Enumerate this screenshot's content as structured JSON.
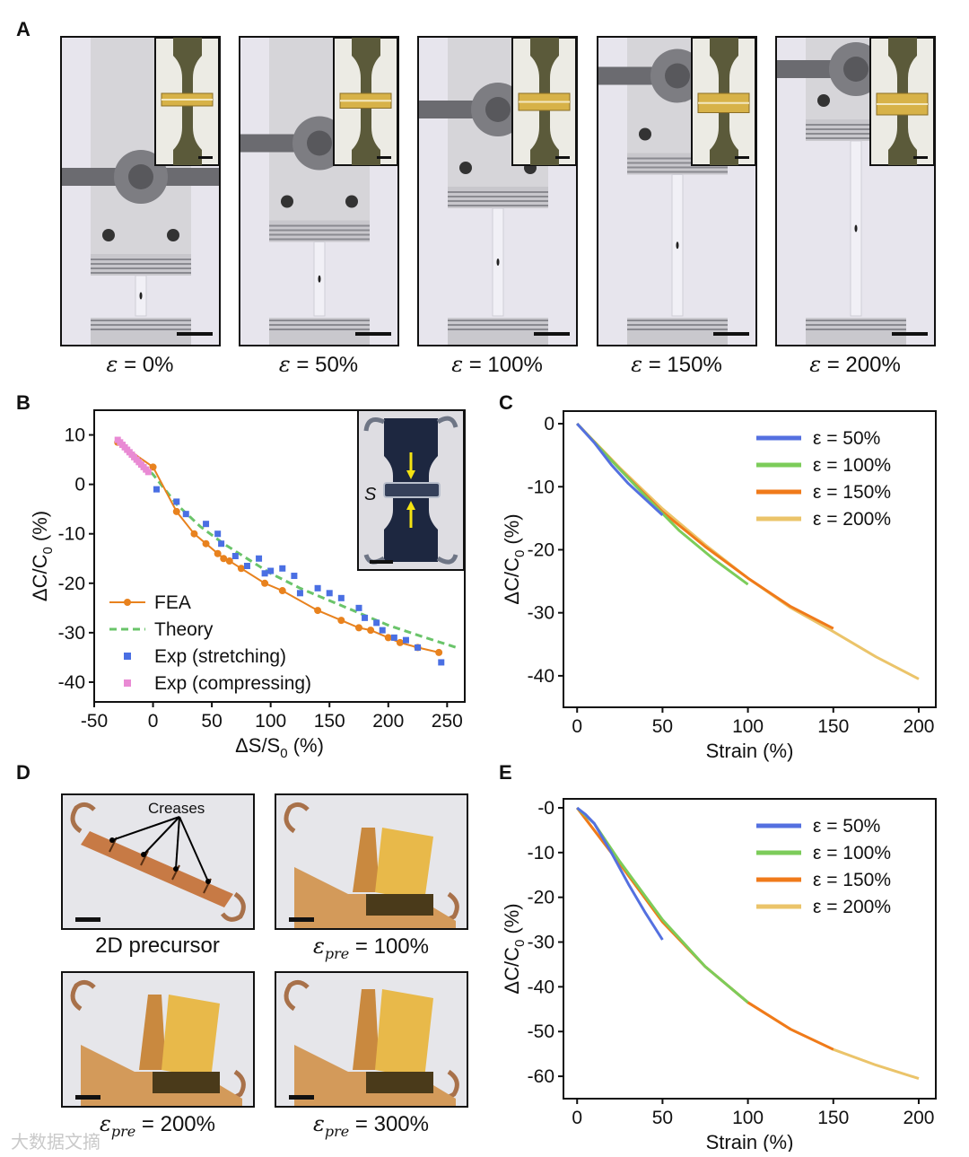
{
  "panel_labels": {
    "a": "A",
    "b": "B",
    "c": "C",
    "d": "D",
    "e": "E"
  },
  "panel_a": {
    "strain_symbol": "ε",
    "captions": [
      " = 0%",
      " = 50%",
      " = 100%",
      " = 150%",
      " = 200%"
    ],
    "photo_stretch_values": [
      0,
      50,
      100,
      150,
      200
    ]
  },
  "panel_b_inset_label": "S",
  "panel_d": {
    "creases_label": "Creases",
    "captions": [
      "2D precursor",
      " = 100%",
      " = 200%",
      " = 300%"
    ],
    "eps_pre_symbol": "ε",
    "eps_pre_subscript": "pre"
  },
  "watermark": "大数据文摘",
  "colors": {
    "fea": "#e8821e",
    "theory": "#6ac46a",
    "exp_stretch": "#4a6fe3",
    "exp_compress": "#e98ad4",
    "s50": "#5470e0",
    "s100": "#7ccc5a",
    "s150": "#f07a1a",
    "s200": "#ebc46a"
  },
  "chart_data": [
    {
      "panel": "B",
      "type": "scatter",
      "xlabel": "ΔS/S0 (%)",
      "ylabel": "ΔC/C0 (%)",
      "xlim": [
        -50,
        265
      ],
      "ylim": [
        -44,
        15
      ],
      "xticks": [
        -50,
        0,
        50,
        100,
        150,
        200,
        250
      ],
      "yticks": [
        10,
        0,
        -10,
        -20,
        -30,
        -40
      ],
      "legend": [
        "FEA",
        "Theory",
        "Exp (stretching)",
        "Exp (compressing)"
      ],
      "series": [
        {
          "name": "FEA",
          "style": "line+marker",
          "x": [
            -30,
            0,
            20,
            35,
            45,
            55,
            60,
            65,
            75,
            95,
            110,
            140,
            160,
            175,
            185,
            200,
            210,
            225,
            243
          ],
          "y": [
            8.5,
            3.5,
            -5.5,
            -10,
            -12,
            -14,
            -15,
            -15.5,
            -17,
            -20,
            -21.5,
            -25.5,
            -27.5,
            -29,
            -29.5,
            -31,
            -32,
            -33,
            -34
          ]
        },
        {
          "name": "Theory",
          "style": "dashed",
          "x": [
            -30,
            -15,
            0,
            20,
            40,
            60,
            80,
            100,
            125,
            150,
            175,
            200,
            225,
            258
          ],
          "y": [
            9,
            5.5,
            2,
            -4,
            -8.5,
            -12,
            -15,
            -18,
            -21,
            -23.5,
            -26,
            -28.5,
            -30.5,
            -33
          ]
        },
        {
          "name": "Exp (stretching)",
          "style": "marker",
          "x": [
            3,
            20,
            28,
            45,
            55,
            58,
            70,
            80,
            90,
            95,
            100,
            110,
            120,
            125,
            140,
            150,
            160,
            175,
            180,
            190,
            195,
            205,
            215,
            225,
            245
          ],
          "y": [
            -1,
            -3.5,
            -6,
            -8,
            -10,
            -12,
            -14.5,
            -16.5,
            -15,
            -18,
            -17.5,
            -17,
            -18.5,
            -22,
            -21,
            -22,
            -23,
            -25,
            -27,
            -28,
            -29.5,
            -31,
            -31.5,
            -33,
            -36
          ]
        },
        {
          "name": "Exp (compressing)",
          "style": "marker",
          "x": [
            -30,
            -28,
            -26,
            -24,
            -22,
            -20,
            -18,
            -16,
            -14,
            -12,
            -10,
            -8,
            -6,
            -4
          ],
          "y": [
            9,
            8.5,
            8,
            7.5,
            7,
            6.5,
            6,
            5.5,
            5,
            4.5,
            4,
            3.5,
            3,
            2.5
          ]
        }
      ]
    },
    {
      "panel": "C",
      "type": "line",
      "xlabel": "Strain (%)",
      "ylabel": "ΔC/C0 (%)",
      "xlim": [
        -8,
        210
      ],
      "ylim": [
        -45,
        2
      ],
      "xticks": [
        0,
        50,
        100,
        150,
        200
      ],
      "yticks": [
        0,
        -10,
        -20,
        -30,
        -40
      ],
      "legend": [
        "ε = 50%",
        "ε = 100%",
        "ε = 150%",
        "ε = 200%"
      ],
      "series": [
        {
          "name": "ε = 50%",
          "max_strain": 50,
          "x": [
            0,
            10,
            20,
            30,
            40,
            50
          ],
          "y": [
            0,
            -3,
            -6.5,
            -9.5,
            -12,
            -14.5
          ]
        },
        {
          "name": "ε = 100%",
          "max_strain": 100,
          "x": [
            0,
            20,
            40,
            60,
            80,
            100
          ],
          "y": [
            0,
            -5.8,
            -11.5,
            -17,
            -21.5,
            -25.5
          ]
        },
        {
          "name": "ε = 150%",
          "max_strain": 150,
          "x": [
            0,
            25,
            50,
            75,
            100,
            125,
            150
          ],
          "y": [
            0,
            -7.2,
            -14,
            -19.5,
            -24.5,
            -29,
            -32.5
          ]
        },
        {
          "name": "ε = 200%",
          "max_strain": 200,
          "x": [
            0,
            25,
            50,
            75,
            100,
            125,
            150,
            175,
            200
          ],
          "y": [
            0,
            -7,
            -13.5,
            -19.2,
            -24.5,
            -29.2,
            -33,
            -37,
            -40.5
          ]
        }
      ]
    },
    {
      "panel": "E",
      "type": "line",
      "xlabel": "Strain (%)",
      "ylabel": "ΔC/C0 (%)",
      "xlim": [
        -8,
        210
      ],
      "ylim": [
        -65,
        2
      ],
      "xticks": [
        0,
        50,
        100,
        150,
        200
      ],
      "yticks": [
        0,
        -10,
        -20,
        -30,
        -40,
        -50,
        -60
      ],
      "ytick_labels": [
        "-0",
        "-10",
        "-20",
        "-30",
        "-40",
        "-50",
        "-60"
      ],
      "legend": [
        "ε = 50%",
        "ε = 100%",
        "ε = 150%",
        "ε = 200%"
      ],
      "series": [
        {
          "name": "ε = 50%",
          "max_strain": 50,
          "x": [
            0,
            5,
            10,
            20,
            30,
            40,
            50
          ],
          "y": [
            0,
            -1.5,
            -3.5,
            -10,
            -17,
            -23.5,
            -29.5
          ]
        },
        {
          "name": "ε = 100%",
          "max_strain": 100,
          "x": [
            0,
            10,
            25,
            50,
            75,
            100
          ],
          "y": [
            0,
            -3.5,
            -12,
            -25,
            -35.5,
            -43.5
          ]
        },
        {
          "name": "ε = 150%",
          "max_strain": 150,
          "x": [
            0,
            25,
            50,
            75,
            100,
            125,
            150
          ],
          "y": [
            0,
            -12.5,
            -25.5,
            -35.5,
            -43.5,
            -49.5,
            -54
          ]
        },
        {
          "name": "ε = 200%",
          "max_strain": 200,
          "x": [
            0,
            25,
            50,
            75,
            100,
            125,
            150,
            175,
            200
          ],
          "y": [
            0,
            -12.5,
            -25.5,
            -35.5,
            -43.5,
            -49.5,
            -54,
            -57.5,
            -60.5
          ]
        }
      ]
    }
  ]
}
